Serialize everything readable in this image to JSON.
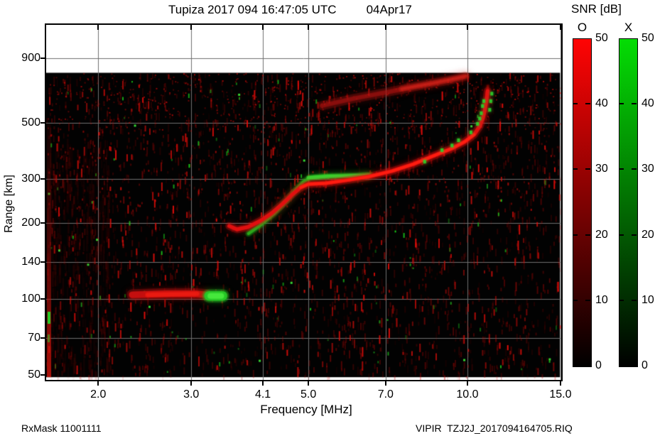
{
  "header": {
    "title": "Tupiza 2017 094 16:47:05 UTC",
    "date": "04Apr17"
  },
  "footer": {
    "left": "RxMask 11001111",
    "right": "VIPIR  TZJ2J_2017094164705.RIQ"
  },
  "legend": {
    "title": "SNR [dB]",
    "o_label": "O",
    "x_label": "X",
    "o_color": "#ff0404",
    "x_color": "#04dd04",
    "vmin": 0,
    "vmax": 50,
    "ticks": [
      {
        "label": "50",
        "value": 50
      },
      {
        "label": "40",
        "value": 40
      },
      {
        "label": "30",
        "value": 30
      },
      {
        "label": "20",
        "value": 20
      },
      {
        "label": "10",
        "value": 10
      },
      {
        "label": "0",
        "value": 0
      }
    ]
  },
  "chart_data": {
    "type": "heatmap",
    "title": "Tupiza 2017 094 16:47:05 UTC  04Apr17",
    "xlabel": "Frequency [MHz]",
    "ylabel": "Range [km]",
    "x_scale": "log",
    "y_scale": "log",
    "xlim": [
      1.594,
      15.05
    ],
    "ylim": [
      47.8,
      1224
    ],
    "grid": true,
    "grid_color": "#6f6f6f",
    "x_ticks": [
      {
        "label": "2.0",
        "value": 2.0
      },
      {
        "label": "3.0",
        "value": 3.0
      },
      {
        "label": "4.1",
        "value": 4.1
      },
      {
        "label": "5.0",
        "value": 5.0
      },
      {
        "label": "7.0",
        "value": 7.0
      },
      {
        "label": "10.0",
        "value": 10.0
      },
      {
        "label": "15.0",
        "value": 15.0
      }
    ],
    "y_ticks": [
      {
        "label": "900",
        "value": 900,
        "grid": true
      },
      {
        "label": "500",
        "value": 500,
        "grid": true
      },
      {
        "label": "300",
        "value": 300,
        "grid": true
      },
      {
        "label": "200",
        "value": 200,
        "grid": true
      },
      {
        "label": "140",
        "value": 140,
        "grid": true
      },
      {
        "label": "100",
        "value": 100,
        "grid": true
      },
      {
        "label": "70",
        "value": 70,
        "grid": true
      },
      {
        "label": "50",
        "value": 50,
        "grid": false
      }
    ],
    "data_region": {
      "bg": "#020202",
      "max_range_km": 790,
      "min_range_km": 49,
      "max_freq_mhz": 14.97
    },
    "colorbar": {
      "label": "SNR [dB]",
      "min": 0,
      "max": 50,
      "o_color": "#ff0404",
      "x_color": "#04dd04"
    },
    "series": [
      {
        "id": "spread-echo-arc",
        "name": "diffuse oblique spread echo",
        "style": "diffuse",
        "color": "#b41410",
        "width": 6,
        "glow": 13,
        "alpha": 0.42,
        "points": [
          [
            5.3,
            585
          ],
          [
            6.1,
            625
          ],
          [
            7.05,
            662
          ],
          [
            8.1,
            702
          ],
          [
            9.2,
            738
          ],
          [
            9.9,
            765
          ]
        ]
      },
      {
        "id": "spread-echo-bright",
        "name": "spread echo bright edge",
        "style": "diffuse",
        "color": "#d2231a",
        "width": 3,
        "glow": 8,
        "alpha": 0.5,
        "points": [
          [
            7.5,
            682
          ],
          [
            8.6,
            718
          ],
          [
            9.5,
            750
          ],
          [
            9.95,
            768
          ]
        ]
      },
      {
        "id": "fxf2-tail",
        "name": "faint vertical tail above asymptote",
        "style": "diffuse",
        "color": "#a81008",
        "width": 2,
        "glow": 5,
        "alpha": 0.55,
        "points": [
          [
            10.88,
            610
          ],
          [
            10.93,
            700
          ]
        ]
      },
      {
        "id": "x-f-trace",
        "name": "X-mode F-region trace",
        "style": "trace",
        "color": "#1fb41c",
        "width": 4,
        "glow": 9,
        "points": [
          [
            3.85,
            182
          ],
          [
            4.05,
            196
          ],
          [
            4.3,
            218
          ],
          [
            4.55,
            246
          ],
          [
            4.75,
            274
          ],
          [
            4.9,
            293
          ],
          [
            5.05,
            303
          ],
          [
            5.35,
            307
          ],
          [
            5.75,
            308
          ],
          [
            6.2,
            309
          ],
          [
            6.55,
            311
          ]
        ]
      },
      {
        "id": "x-f-flat-core",
        "name": "X-mode flat segment core",
        "style": "trace",
        "color": "#35dc30",
        "width": 4,
        "glow": 7,
        "points": [
          [
            5.0,
            303
          ],
          [
            5.5,
            307
          ],
          [
            6.0,
            308
          ],
          [
            6.5,
            310
          ]
        ]
      },
      {
        "id": "o-f-trace",
        "name": "O-mode F-region trace",
        "style": "trace",
        "color": "#e01010",
        "width": 5,
        "glow": 11,
        "points": [
          [
            3.54,
            195
          ],
          [
            3.66,
            189
          ],
          [
            3.84,
            193
          ],
          [
            4.05,
            204
          ],
          [
            4.26,
            219
          ],
          [
            4.47,
            239
          ],
          [
            4.66,
            260
          ],
          [
            4.83,
            277
          ],
          [
            5.0,
            286
          ],
          [
            5.4,
            288
          ],
          [
            5.9,
            296
          ],
          [
            6.5,
            306
          ],
          [
            7.2,
            322
          ],
          [
            7.9,
            343
          ],
          [
            8.65,
            371
          ],
          [
            9.35,
            396
          ],
          [
            9.9,
            422
          ],
          [
            10.3,
            450
          ],
          [
            10.55,
            485
          ],
          [
            10.7,
            523
          ],
          [
            10.8,
            569
          ],
          [
            10.87,
            619
          ],
          [
            10.92,
            669
          ]
        ]
      },
      {
        "id": "o-f-core",
        "name": "O-mode trace bright core",
        "style": "trace",
        "color": "#ff1d12",
        "width": 3,
        "glow": 4,
        "points": [
          [
            4.83,
            277
          ],
          [
            5.0,
            286
          ],
          [
            5.4,
            288
          ],
          [
            5.9,
            296
          ],
          [
            6.5,
            306
          ],
          [
            7.2,
            322
          ],
          [
            7.9,
            343
          ],
          [
            8.65,
            371
          ],
          [
            9.35,
            396
          ],
          [
            9.9,
            422
          ],
          [
            10.3,
            450
          ]
        ]
      },
      {
        "id": "x-f-upper-dots",
        "name": "X-mode upper trace dots",
        "style": "dots",
        "color": "#2bd22a",
        "size": 4,
        "points": [
          [
            8.3,
            352
          ],
          [
            8.95,
            391
          ],
          [
            9.35,
            408
          ],
          [
            9.62,
            428
          ],
          [
            10.15,
            460
          ],
          [
            10.45,
            497
          ],
          [
            10.55,
            522
          ],
          [
            10.62,
            548
          ],
          [
            10.68,
            585
          ],
          [
            10.74,
            612
          ],
          [
            11.02,
            565
          ],
          [
            11.07,
            612
          ],
          [
            11.12,
            655
          ]
        ]
      },
      {
        "id": "o-e-echo",
        "name": "O-mode E-region echo",
        "style": "blob",
        "color": "#c41010",
        "width": 9,
        "glow": 16,
        "points": [
          [
            2.32,
            104
          ],
          [
            2.7,
            105
          ],
          [
            3.05,
            105
          ],
          [
            3.2,
            104
          ]
        ]
      },
      {
        "id": "o-e-core",
        "name": "O-mode E echo core",
        "style": "trace",
        "color": "#ea1a12",
        "width": 5,
        "glow": 8,
        "points": [
          [
            2.48,
            104
          ],
          [
            3.08,
            105
          ]
        ]
      },
      {
        "id": "x-e-echo",
        "name": "X-mode E-region echo",
        "style": "blob",
        "color": "#26c426",
        "width": 13,
        "glow": 19,
        "points": [
          [
            3.24,
            103
          ],
          [
            3.44,
            103
          ]
        ]
      },
      {
        "id": "x-e-core",
        "name": "X-mode E echo core",
        "style": "trace",
        "color": "#46e83c",
        "width": 7,
        "glow": 9,
        "points": [
          [
            3.26,
            103
          ],
          [
            3.42,
            103
          ]
        ]
      }
    ],
    "noise": {
      "seed": 11,
      "faint_red": 2600,
      "bright_red": 430,
      "upper_dots": 620,
      "mid_dots": 260,
      "green_specks": 110,
      "bright_green": 13,
      "left_haze": 360,
      "rfi_streak": true
    }
  }
}
